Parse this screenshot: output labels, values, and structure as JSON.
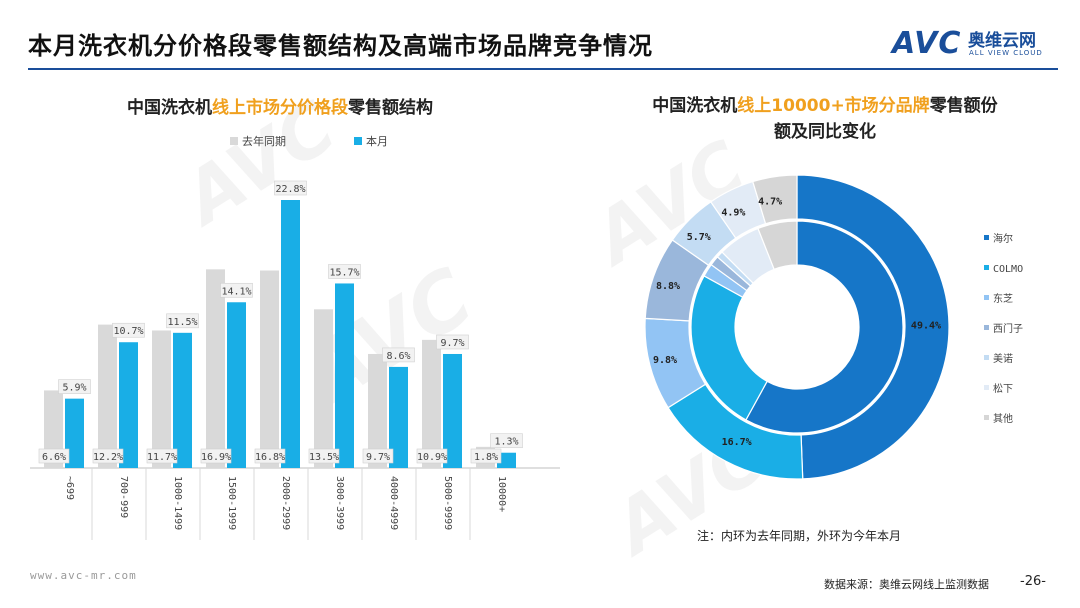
{
  "header": {
    "title": "本月洗衣机分价格段零售额结构及高端市场品牌竞争情况",
    "logo_mark": "AVC",
    "logo_cn": "奥维云网",
    "logo_en": "ALL VIEW CLOUD",
    "brand_color": "#1a4e9a"
  },
  "bar_section": {
    "title_pre": "中国洗衣机",
    "title_hl": "线上市场分价格段",
    "title_post": "零售额结构"
  },
  "donut_section": {
    "title_pre": "中国洗衣机",
    "title_hl": "线上10000+市场分品牌",
    "title_post": "零售额份",
    "title_line2": "额及同比变化",
    "note": "注：内环为去年同期，外环为今年本月"
  },
  "footer": {
    "site": "www.avc-mr.com",
    "source": "数据来源：奥维云网线上监测数据",
    "page": "-26-"
  },
  "watermark": {
    "mark": "AVC",
    "en": "ALL VIEW CLOUD",
    "cn": "奥维云网"
  },
  "chart_data": [
    {
      "type": "bar",
      "categories": [
        "~699",
        "700-999",
        "1000-1499",
        "1500-1999",
        "2000-2999",
        "3000-3999",
        "4000-4999",
        "5000-9999",
        "10000+"
      ],
      "series": [
        {
          "name": "去年同期",
          "values": [
            6.6,
            12.2,
            11.7,
            16.9,
            16.8,
            13.5,
            9.7,
            10.9,
            1.8
          ],
          "labels": [
            "6.6%",
            "12.2%",
            "11.7%",
            "16.9%",
            "16.8%",
            "13.5%",
            "9.7%",
            "10.9%",
            "1.8%"
          ],
          "color": "#d9d9d9"
        },
        {
          "name": "本月",
          "values": [
            5.9,
            10.7,
            11.5,
            14.1,
            22.8,
            15.7,
            8.6,
            9.7,
            1.3
          ],
          "labels": [
            "5.9%",
            "10.7%",
            "11.5%",
            "14.1%",
            "22.8%",
            "15.7%",
            "8.6%",
            "9.7%",
            "1.3%"
          ],
          "color": "#19aee6"
        }
      ],
      "ylim": [
        0,
        25
      ],
      "grid": false,
      "legend": "top"
    },
    {
      "type": "pie",
      "variant": "donut-two-ring",
      "categories": [
        "海尔",
        "COLMO",
        "东芝",
        "西门子",
        "美诺",
        "松下",
        "其他"
      ],
      "colors": [
        "#1676c8",
        "#1aaee6",
        "#92c4f4",
        "#9ab7db",
        "#c3dcf3",
        "#e2ebf6",
        "#d6d6d6"
      ],
      "outer": {
        "name": "本月",
        "values": [
          49.4,
          16.7,
          9.8,
          8.8,
          5.7,
          4.9,
          4.7
        ],
        "labels": [
          "49.4%",
          "16.7%",
          "9.8%",
          "8.8%",
          "5.7%",
          "4.9%",
          "4.7%"
        ]
      },
      "inner": {
        "name": "去年同期",
        "values": [
          58,
          25,
          2,
          1.5,
          1,
          6.5,
          6
        ],
        "labels": []
      },
      "legend": "right"
    }
  ]
}
